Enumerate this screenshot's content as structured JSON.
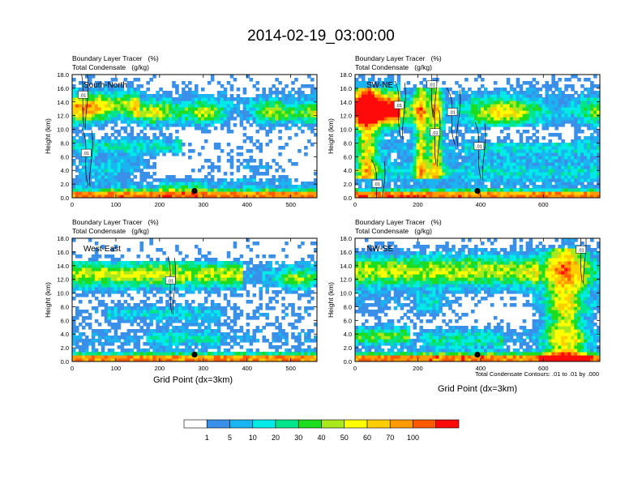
{
  "figure": {
    "title": "2014-02-19_03:00:00",
    "xlabel": "Grid Point (dx=3km)",
    "contour_note": "Total Condensate Contours: .01 to .01 by .000"
  },
  "colorbar": {
    "tick_labels": [
      "1",
      "5",
      "10",
      "20",
      "30",
      "40",
      "50",
      "60",
      "70",
      "100"
    ],
    "colors": [
      "#ffffff",
      "#3a8fe8",
      "#1ab4f0",
      "#00eae8",
      "#00e58a",
      "#1edc1e",
      "#a8e81c",
      "#ffff00",
      "#ffce00",
      "#ff9a00",
      "#ff5a00",
      "#ff0a0a"
    ]
  },
  "chart_data": [
    {
      "type": "heatmap",
      "name": "South-North",
      "title_line1": "Boundary Layer Tracer   (%)",
      "title_line2": "Total Condensate   (g/kg)",
      "panel_label": "South-North",
      "ylabel": "Height (km)",
      "xlim": [
        0,
        560
      ],
      "ylim": [
        0,
        18
      ],
      "xticks": [
        0,
        100,
        200,
        300,
        400,
        500
      ],
      "yticks": [
        0,
        2,
        4,
        6,
        8,
        10,
        12,
        14,
        16,
        18
      ],
      "ytick_labels": [
        "0.0",
        "2.0",
        "4.0",
        "6.0",
        "8.0",
        "10.0",
        "12.0",
        "14.0",
        "16.0",
        "18.0"
      ],
      "marker": {
        "x": 280,
        "y": 1.0
      },
      "contour_labels": [
        {
          "x": 25,
          "y": 15.0,
          "text": ".01"
        },
        {
          "x": 32,
          "y": 6.5,
          "text": ".01"
        }
      ]
    },
    {
      "type": "heatmap",
      "name": "SW-NE",
      "title_line1": "Boundary Layer Tracer   (%)",
      "title_line2": "Total Condensate   (g/kg)",
      "panel_label": "SW-NE",
      "ylabel": "Height (km)",
      "xlim": [
        0,
        780
      ],
      "ylim": [
        0,
        18
      ],
      "xticks": [
        0,
        200,
        400,
        600
      ],
      "yticks": [
        0,
        2,
        4,
        6,
        8,
        10,
        12,
        14,
        16,
        18
      ],
      "ytick_labels": [
        "0.0",
        "2.0",
        "4.0",
        "6.0",
        "8.0",
        "10.0",
        "12.0",
        "14.0",
        "16.0",
        "18.0"
      ],
      "marker": {
        "x": 390,
        "y": 1.0
      },
      "contour_labels": [
        {
          "x": 245,
          "y": 16.5,
          "text": ".01"
        },
        {
          "x": 140,
          "y": 13.5,
          "text": ".01"
        },
        {
          "x": 310,
          "y": 12.5,
          "text": ".01"
        },
        {
          "x": 255,
          "y": 9.5,
          "text": ".01"
        },
        {
          "x": 395,
          "y": 7.5,
          "text": ".01"
        },
        {
          "x": 70,
          "y": 2.0,
          "text": ".01"
        }
      ]
    },
    {
      "type": "heatmap",
      "name": "West-East",
      "title_line1": "Boundary Layer Tracer   (%)",
      "title_line2": "Total Condensate   (g/kg)",
      "panel_label": "West-East",
      "ylabel": "Height (km)",
      "xlim": [
        0,
        560
      ],
      "ylim": [
        0,
        18
      ],
      "xticks": [
        0,
        100,
        200,
        300,
        400,
        500
      ],
      "yticks": [
        0,
        2,
        4,
        6,
        8,
        10,
        12,
        14,
        16,
        18
      ],
      "ytick_labels": [
        "0.0",
        "2.0",
        "4.0",
        "6.0",
        "8.0",
        "10.0",
        "12.0",
        "14.0",
        "16.0",
        "18.0"
      ],
      "marker": {
        "x": 280,
        "y": 1.0
      },
      "contour_labels": [
        {
          "x": 225,
          "y": 11.8,
          "text": ".01"
        }
      ]
    },
    {
      "type": "heatmap",
      "name": "NW-SE",
      "title_line1": "Boundary Layer Tracer   (%)",
      "title_line2": "Total Condensate   (g/kg)",
      "panel_label": "NW-SE",
      "ylabel": "Height (km)",
      "xlim": [
        0,
        780
      ],
      "ylim": [
        0,
        18
      ],
      "xticks": [
        0,
        200,
        400,
        600
      ],
      "yticks": [
        0,
        2,
        4,
        6,
        8,
        10,
        12,
        14,
        16,
        18
      ],
      "ytick_labels": [
        "0.0",
        "2.0",
        "4.0",
        "6.0",
        "8.0",
        "10.0",
        "12.0",
        "14.0",
        "16.0",
        "18.0"
      ],
      "marker": {
        "x": 390,
        "y": 1.0
      },
      "contour_labels": [
        {
          "x": 720,
          "y": 16.3,
          "text": ".01"
        }
      ]
    }
  ]
}
